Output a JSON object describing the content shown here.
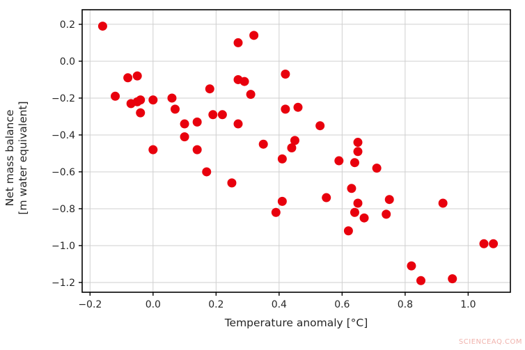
{
  "watermark": {
    "text": "SCIENCEAQ.COM",
    "color": "#f0b2ac"
  },
  "chart_data": {
    "type": "scatter",
    "title": "",
    "xlabel": "Temperature anomaly  [°C]",
    "ylabel_line1": "Net mass balance",
    "ylabel_line2": "[m water equivalent]",
    "xlim": [
      -0.225,
      1.134
    ],
    "ylim": [
      -1.253,
      0.279
    ],
    "xticks": [
      -0.2,
      0.0,
      0.2,
      0.4,
      0.6,
      0.8,
      1.0
    ],
    "xtick_labels": [
      "−0.2",
      "0.0",
      "0.2",
      "0.4",
      "0.6",
      "0.8",
      "1.0"
    ],
    "yticks": [
      0.2,
      0.0,
      -0.2,
      -0.4,
      -0.6,
      -0.8,
      -1.0,
      -1.2
    ],
    "ytick_labels": [
      "0.2",
      "0.0",
      "−0.2",
      "−0.4",
      "−0.6",
      "−0.8",
      "−1.0",
      "−1.2"
    ],
    "grid": true,
    "legend": "none",
    "marker_color": "#e8000d",
    "marker_radius": 6.5,
    "grid_color": "#cfcfcf",
    "frame_color": "#000000",
    "points": [
      [
        -0.16,
        0.19
      ],
      [
        -0.12,
        -0.19
      ],
      [
        -0.08,
        -0.09
      ],
      [
        -0.05,
        -0.08
      ],
      [
        -0.07,
        -0.23
      ],
      [
        -0.05,
        -0.22
      ],
      [
        -0.04,
        -0.21
      ],
      [
        -0.04,
        -0.28
      ],
      [
        0.0,
        -0.21
      ],
      [
        0.06,
        -0.2
      ],
      [
        0.07,
        -0.26
      ],
      [
        0.1,
        -0.34
      ],
      [
        0.14,
        -0.33
      ],
      [
        0.18,
        -0.15
      ],
      [
        0.19,
        -0.29
      ],
      [
        0.22,
        -0.29
      ],
      [
        0.1,
        -0.41
      ],
      [
        0.14,
        -0.48
      ],
      [
        0.0,
        -0.48
      ],
      [
        0.27,
        0.1
      ],
      [
        0.32,
        0.14
      ],
      [
        0.42,
        -0.07
      ],
      [
        0.27,
        -0.1
      ],
      [
        0.29,
        -0.11
      ],
      [
        0.31,
        -0.18
      ],
      [
        0.27,
        -0.34
      ],
      [
        0.42,
        -0.26
      ],
      [
        0.46,
        -0.25
      ],
      [
        0.53,
        -0.35
      ],
      [
        0.35,
        -0.45
      ],
      [
        0.45,
        -0.43
      ],
      [
        0.44,
        -0.47
      ],
      [
        0.41,
        -0.53
      ],
      [
        0.17,
        -0.6
      ],
      [
        0.25,
        -0.66
      ],
      [
        0.59,
        -0.54
      ],
      [
        0.65,
        -0.44
      ],
      [
        0.65,
        -0.49
      ],
      [
        0.64,
        -0.55
      ],
      [
        0.71,
        -0.58
      ],
      [
        0.55,
        -0.74
      ],
      [
        0.41,
        -0.76
      ],
      [
        0.39,
        -0.82
      ],
      [
        0.63,
        -0.69
      ],
      [
        0.65,
        -0.77
      ],
      [
        0.64,
        -0.82
      ],
      [
        0.67,
        -0.85
      ],
      [
        0.62,
        -0.92
      ],
      [
        0.75,
        -0.75
      ],
      [
        0.74,
        -0.83
      ],
      [
        0.92,
        -0.77
      ],
      [
        0.82,
        -1.11
      ],
      [
        0.85,
        -1.19
      ],
      [
        0.95,
        -1.18
      ],
      [
        1.05,
        -0.99
      ],
      [
        1.08,
        -0.99
      ]
    ]
  }
}
